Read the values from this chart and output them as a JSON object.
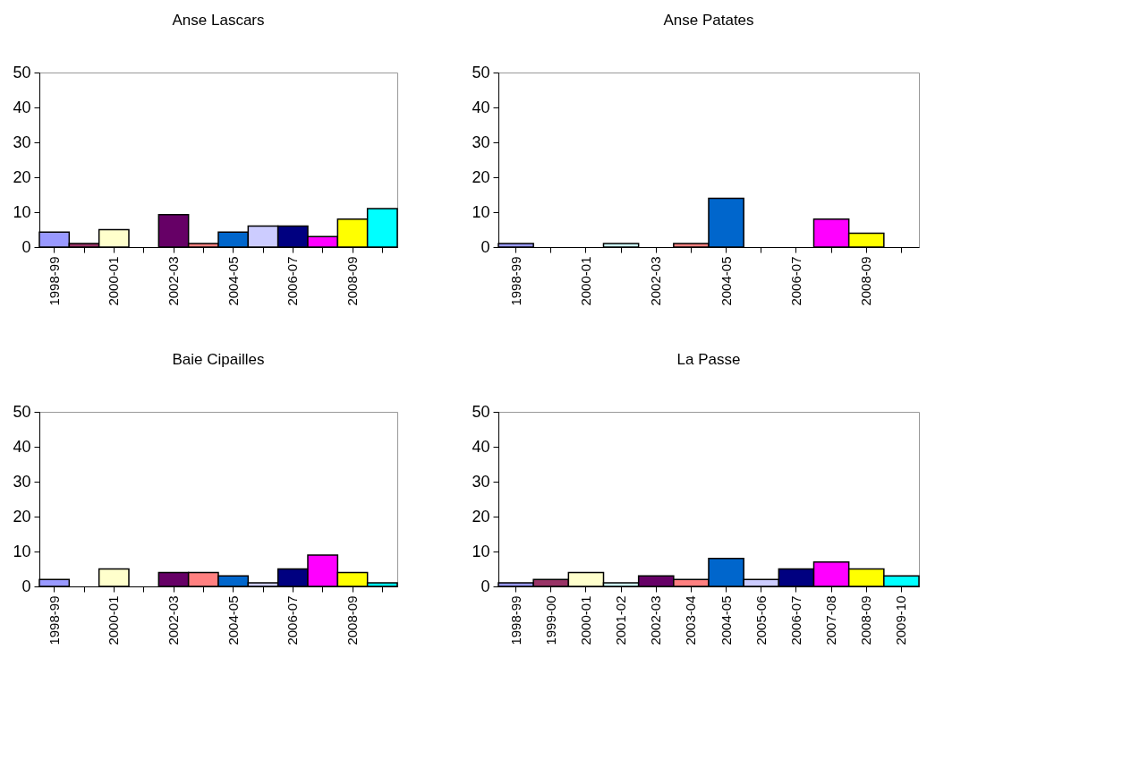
{
  "chart_data": [
    {
      "type": "bar",
      "title": "Anse Lascars",
      "categories": [
        "1998-99",
        null,
        "2000-01",
        null,
        "2002-03",
        null,
        "2004-05",
        null,
        "2006-07",
        null,
        "2008-09",
        null
      ],
      "values": [
        4.3,
        1,
        5,
        null,
        9.3,
        1,
        4.3,
        6,
        6,
        3,
        8,
        11
      ],
      "colors": [
        "#9999ff",
        "#993366",
        "#ffffcc",
        "#ccffff",
        "#660066",
        "#ff8080",
        "#0066cc",
        "#ccccff",
        "#000080",
        "#ff00ff",
        "#ffff00",
        "#00ffff"
      ],
      "ylim": [
        0,
        50
      ],
      "yticks": [
        0,
        10,
        20,
        30,
        40,
        50
      ],
      "grid": false
    },
    {
      "type": "bar",
      "title": "Anse Patates",
      "categories": [
        "1998-99",
        null,
        "2000-01",
        null,
        "2002-03",
        null,
        "2004-05",
        null,
        "2006-07",
        null,
        "2008-09",
        null
      ],
      "values": [
        1,
        null,
        null,
        1,
        null,
        1,
        14,
        null,
        null,
        8,
        4,
        null
      ],
      "colors": [
        "#9999ff",
        "#993366",
        "#ffffcc",
        "#ccffff",
        "#660066",
        "#ff8080",
        "#0066cc",
        "#ccccff",
        "#000080",
        "#ff00ff",
        "#ffff00",
        "#00ffff"
      ],
      "ylim": [
        0,
        50
      ],
      "yticks": [
        0,
        10,
        20,
        30,
        40,
        50
      ],
      "grid": false
    },
    {
      "type": "bar",
      "title": "Baie Cipailles",
      "categories": [
        "1998-99",
        null,
        "2000-01",
        null,
        "2002-03",
        null,
        "2004-05",
        null,
        "2006-07",
        null,
        "2008-09",
        null
      ],
      "values": [
        2,
        null,
        5,
        null,
        4,
        4,
        3,
        1,
        5,
        9,
        4,
        1
      ],
      "colors": [
        "#9999ff",
        "#993366",
        "#ffffcc",
        "#ccffff",
        "#660066",
        "#ff8080",
        "#0066cc",
        "#ccccff",
        "#000080",
        "#ff00ff",
        "#ffff00",
        "#00ffff"
      ],
      "ylim": [
        0,
        50
      ],
      "yticks": [
        0,
        10,
        20,
        30,
        40,
        50
      ],
      "grid": false
    },
    {
      "type": "bar",
      "title": "La Passe",
      "categories": [
        "1998-99",
        "1999-00",
        "2000-01",
        "2001-02",
        "2002-03",
        "2003-04",
        "2004-05",
        "2005-06",
        "2006-07",
        "2007-08",
        "2008-09",
        "2009-10"
      ],
      "values": [
        1,
        2,
        4,
        1,
        3,
        2,
        8,
        2,
        5,
        7,
        5,
        3
      ],
      "colors": [
        "#9999ff",
        "#993366",
        "#ffffcc",
        "#ccffff",
        "#660066",
        "#ff8080",
        "#0066cc",
        "#ccccff",
        "#000080",
        "#ff00ff",
        "#ffff00",
        "#00ffff"
      ],
      "ylim": [
        0,
        50
      ],
      "yticks": [
        0,
        10,
        20,
        30,
        40,
        50
      ],
      "grid": false
    }
  ]
}
